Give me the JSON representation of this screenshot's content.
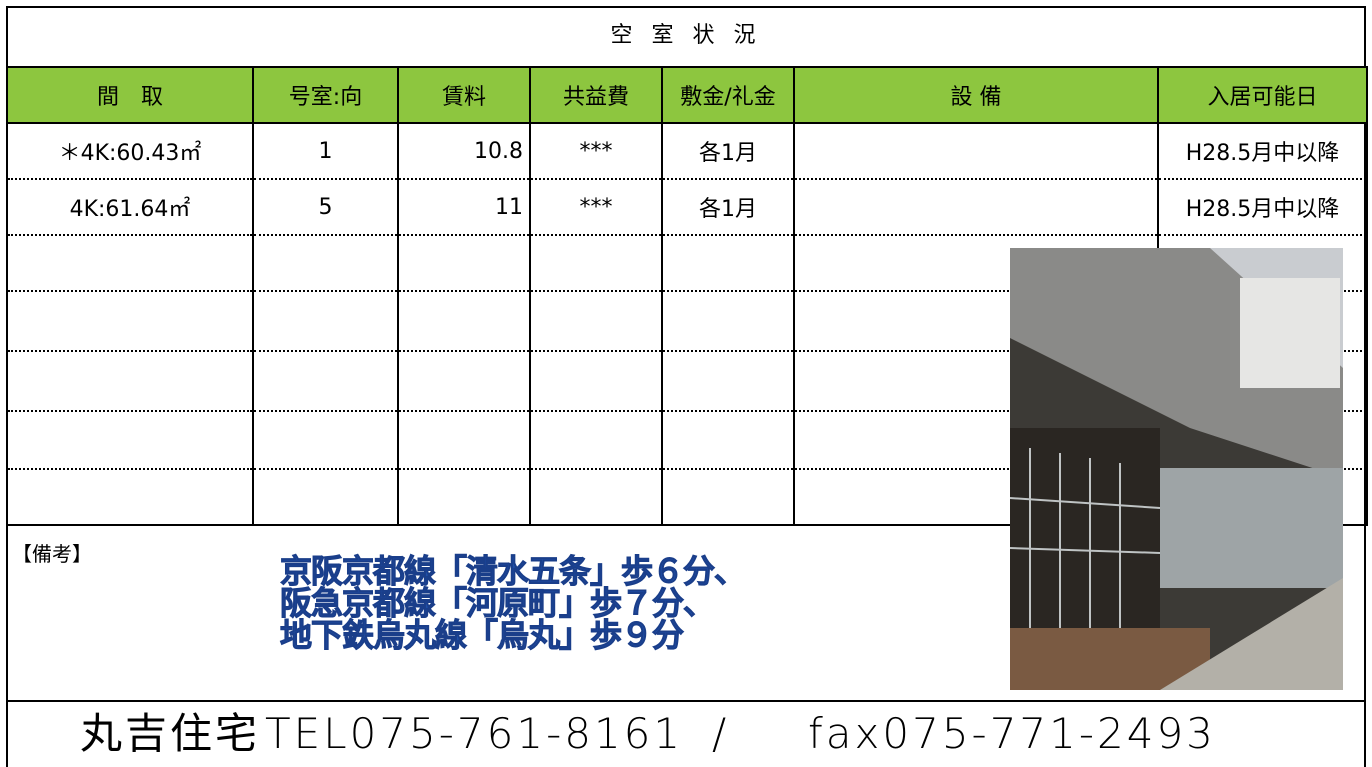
{
  "title": "空 室 状 況",
  "table": {
    "headers": [
      "間　取",
      "号室:向",
      "賃料",
      "共益費",
      "敷金/礼金",
      "設 備",
      "入居可能日"
    ],
    "rows": [
      {
        "layout": "＊4K:60.43㎡",
        "room": "1",
        "rent": "10.8",
        "fee": "***",
        "deposit": "各1月",
        "available": "H28.5月中以降"
      },
      {
        "layout": "4K:61.64㎡",
        "room": "5",
        "rent": "11",
        "fee": "***",
        "deposit": "各1月",
        "available": "H28.5月中以降"
      }
    ]
  },
  "remarks": {
    "label": "【備考】",
    "lines": [
      "京阪京都線「清水五条」歩６分、",
      "阪急京都線「河原町」歩７分、",
      "地下鉄烏丸線「烏丸」歩９分"
    ]
  },
  "footer": {
    "company": "丸吉住宅",
    "tel": "TEL075-761-8161",
    "separator": "/",
    "fax": "fax075-771-2493"
  }
}
